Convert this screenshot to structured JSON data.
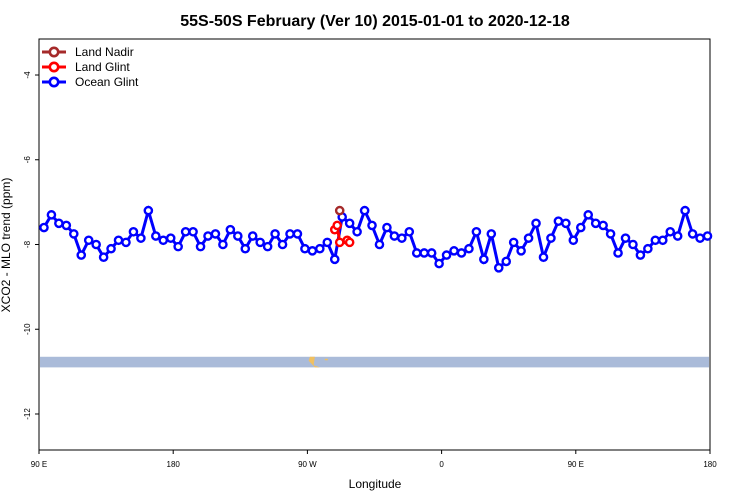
{
  "chart_data": {
    "type": "line",
    "title": "55S-50S February (Ver 10)   2015-01-01 to 2020-12-18",
    "xlabel": "Longitude",
    "ylabel": "XCO2 - MLO trend (ppm)",
    "xlim": [
      -90,
      180
    ],
    "ylim": [
      -12.85,
      -3.15
    ],
    "x_ticks": [
      {
        "value": -90,
        "label": "90 E"
      },
      {
        "value": -36,
        "label": "180"
      },
      {
        "value": 18,
        "label": "90 W"
      },
      {
        "value": 72,
        "label": "0"
      },
      {
        "value": 126,
        "label": "90 E"
      },
      {
        "value": 180,
        "label": "180"
      }
    ],
    "y_ticks": [
      -4,
      -6,
      -8,
      -10,
      -12
    ],
    "legend_position": "top-left",
    "map_band": {
      "y_top": -10.65,
      "y_bottom": -10.9,
      "color": "#aabbd9",
      "land_color": "#f0c060"
    },
    "series": [
      {
        "name": "Land Nadir",
        "color": "#a52a2a",
        "x": [
          31
        ],
        "y": [
          -7.2
        ]
      },
      {
        "name": "Land Glint",
        "color": "#ff0000",
        "x": [
          29,
          30,
          31,
          34,
          35
        ],
        "y": [
          -7.65,
          -7.55,
          -7.95,
          -7.9,
          -7.95
        ]
      },
      {
        "name": "Ocean Glint",
        "color": "#0000ff",
        "x": [
          -88,
          -85,
          -82,
          -79,
          -76,
          -73,
          -70,
          -67,
          -64,
          -61,
          -58,
          -55,
          -52,
          -49,
          -46,
          -43,
          -40,
          -37,
          -34,
          -31,
          -28,
          -25,
          -22,
          -19,
          -16,
          -13,
          -10,
          -7,
          -4,
          -1,
          2,
          5,
          8,
          11,
          14,
          17,
          20,
          23,
          26,
          29,
          32,
          35,
          38,
          41,
          44,
          47,
          50,
          53,
          56,
          59,
          62,
          65,
          68,
          71,
          74,
          77,
          80,
          83,
          86,
          89,
          92,
          95,
          98,
          101,
          104,
          107,
          110,
          113,
          116,
          119,
          122,
          125,
          128,
          131,
          134,
          137,
          140,
          143,
          146,
          149,
          152,
          155,
          158,
          161,
          164,
          167,
          170,
          173,
          176,
          179
        ],
        "y": [
          -7.6,
          -7.3,
          -7.5,
          -7.55,
          -7.75,
          -8.25,
          -7.9,
          -8.0,
          -8.3,
          -8.1,
          -7.9,
          -7.95,
          -7.7,
          -7.85,
          -7.2,
          -7.8,
          -7.9,
          -7.85,
          -8.05,
          -7.7,
          -7.7,
          -8.05,
          -7.8,
          -7.75,
          -8.0,
          -7.65,
          -7.8,
          -8.1,
          -7.8,
          -7.95,
          -8.05,
          -7.75,
          -8.0,
          -7.75,
          -7.75,
          -8.1,
          -8.15,
          -8.1,
          -7.95,
          -8.35,
          -7.35,
          -7.5,
          -7.7,
          -7.2,
          -7.55,
          -8.0,
          -7.6,
          -7.8,
          -7.85,
          -7.7,
          -8.2,
          -8.2,
          -8.2,
          -8.45,
          -8.25,
          -8.15,
          -8.2,
          -8.1,
          -7.7,
          -8.35,
          -7.75,
          -8.55,
          -8.4,
          -7.95,
          -8.15,
          -7.85,
          -7.5,
          -8.3,
          -7.85,
          -7.45,
          -7.5,
          -7.9,
          -7.6,
          -7.3,
          -7.5,
          -7.55,
          -7.75,
          -8.2,
          -7.85,
          -8.0,
          -8.25,
          -8.1,
          -7.9,
          -7.9,
          -7.7,
          -7.8,
          -7.2,
          -7.75,
          -7.85,
          -7.8
        ]
      }
    ]
  }
}
